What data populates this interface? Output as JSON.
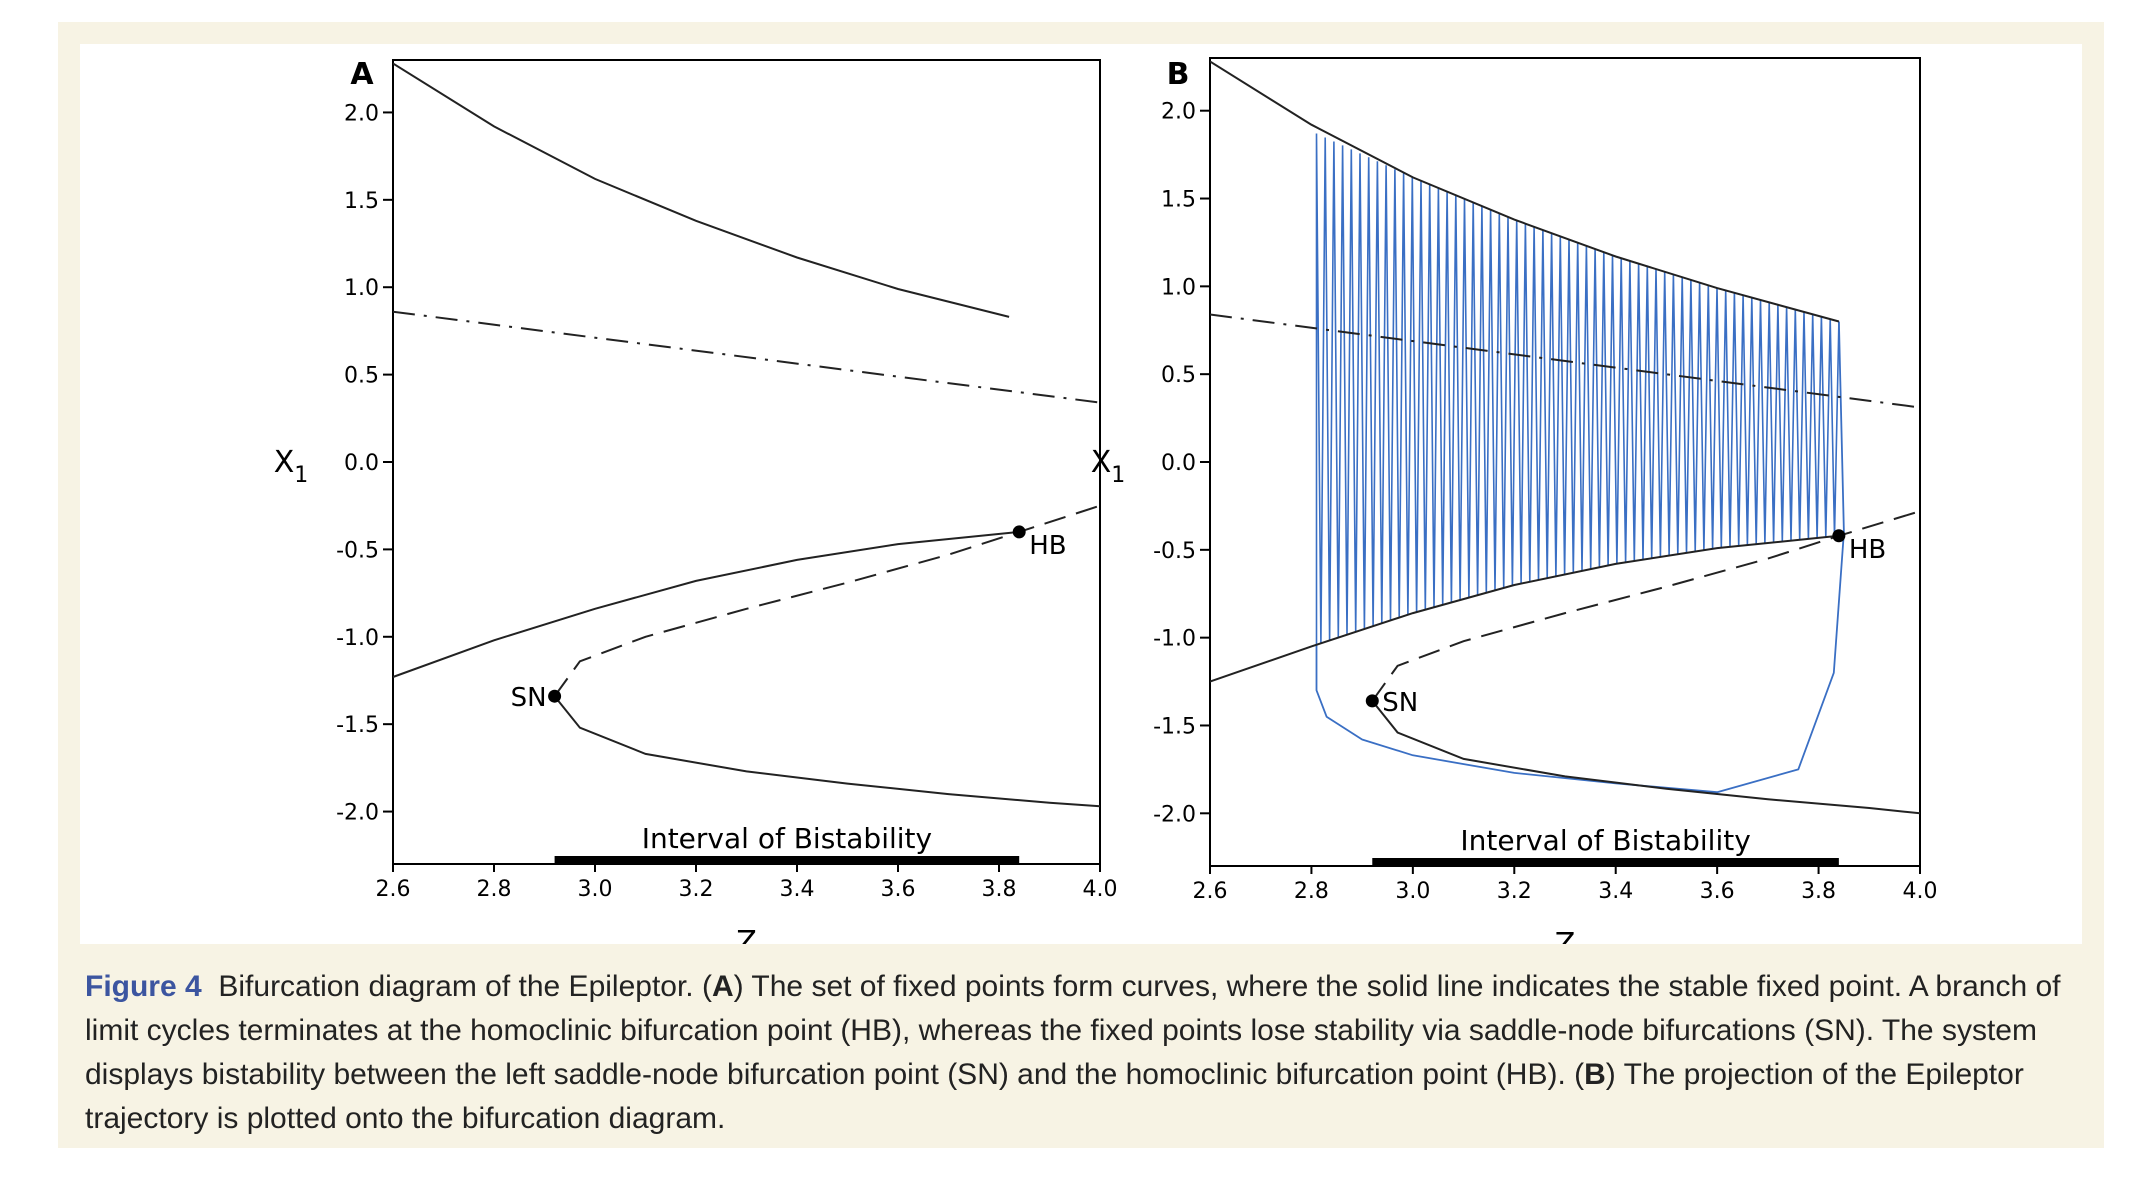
{
  "chart_data": [
    {
      "panel": "A",
      "type": "line",
      "xlabel": "Z",
      "ylabel": "X1",
      "xlim": [
        2.6,
        4.0
      ],
      "ylim": [
        -2.3,
        2.3
      ],
      "xticks": [
        "2.6",
        "2.8",
        "3.0",
        "3.2",
        "3.4",
        "3.6",
        "3.8",
        "4.0"
      ],
      "yticks": [
        "2.0",
        "1.5",
        "1.0",
        "0.5",
        "0.0",
        "-0.5",
        "-1.0",
        "-1.5",
        "-2.0"
      ],
      "series": [
        {
          "style": "solid",
          "x": [
            2.6,
            2.8,
            3.0,
            3.2,
            3.4,
            3.6,
            3.82
          ],
          "y": [
            2.28,
            1.92,
            1.62,
            1.38,
            1.17,
            0.99,
            0.83
          ]
        },
        {
          "style": "dash-dot",
          "x": [
            2.6,
            4.0
          ],
          "y": [
            0.86,
            0.34
          ]
        },
        {
          "style": "solid",
          "x": [
            2.6,
            2.8,
            3.0,
            3.2,
            3.4,
            3.6,
            3.84
          ],
          "y": [
            -1.23,
            -1.02,
            -0.84,
            -0.68,
            -0.56,
            -0.47,
            -0.4
          ]
        },
        {
          "style": "dashed",
          "x": [
            2.92,
            2.97,
            3.1,
            3.3,
            3.5,
            3.7,
            3.84,
            4.0
          ],
          "y": [
            -1.34,
            -1.14,
            -1.0,
            -0.84,
            -0.69,
            -0.53,
            -0.4,
            -0.25
          ]
        },
        {
          "style": "solid",
          "x": [
            2.92,
            2.97,
            3.1,
            3.3,
            3.5,
            3.7,
            3.9,
            4.0
          ],
          "y": [
            -1.34,
            -1.52,
            -1.67,
            -1.77,
            -1.84,
            -1.9,
            -1.95,
            -1.97
          ]
        }
      ],
      "points": [
        {
          "label": "SN",
          "x": 2.92,
          "y": -1.34
        },
        {
          "label": "HB",
          "x": 3.84,
          "y": -0.4
        }
      ],
      "interval": {
        "label": "Interval of Bistability",
        "x": [
          2.92,
          3.84
        ]
      }
    },
    {
      "panel": "B",
      "type": "line",
      "xlabel": "Z",
      "ylabel": "X1",
      "xlim": [
        2.6,
        4.0
      ],
      "ylim": [
        -2.3,
        2.3
      ],
      "xticks": [
        "2.6",
        "2.8",
        "3.0",
        "3.2",
        "3.4",
        "3.6",
        "3.8",
        "4.0"
      ],
      "yticks": [
        "2.0",
        "1.5",
        "1.0",
        "0.5",
        "0.0",
        "-0.5",
        "-1.0",
        "-1.5",
        "-2.0"
      ],
      "series": [
        {
          "style": "solid",
          "x": [
            2.6,
            2.8,
            3.0,
            3.2,
            3.4,
            3.6,
            3.84
          ],
          "y": [
            2.28,
            1.92,
            1.62,
            1.38,
            1.17,
            0.99,
            0.8
          ]
        },
        {
          "style": "dash-dot",
          "x": [
            2.6,
            4.0
          ],
          "y": [
            0.84,
            0.31
          ]
        },
        {
          "style": "solid",
          "x": [
            2.6,
            2.8,
            3.0,
            3.2,
            3.4,
            3.6,
            3.84
          ],
          "y": [
            -1.25,
            -1.05,
            -0.86,
            -0.7,
            -0.58,
            -0.49,
            -0.42
          ]
        },
        {
          "style": "dashed",
          "x": [
            2.92,
            2.97,
            3.1,
            3.3,
            3.5,
            3.7,
            3.84,
            4.0
          ],
          "y": [
            -1.36,
            -1.16,
            -1.02,
            -0.86,
            -0.71,
            -0.55,
            -0.42,
            -0.28
          ]
        },
        {
          "style": "solid",
          "x": [
            2.92,
            2.97,
            3.1,
            3.3,
            3.5,
            3.7,
            3.9,
            4.0
          ],
          "y": [
            -1.36,
            -1.54,
            -1.69,
            -1.79,
            -1.86,
            -1.92,
            -1.97,
            -2.0
          ]
        }
      ],
      "trajectory": {
        "color": "#3a6fc4",
        "x_start": 2.81,
        "x_end": 3.84,
        "oscillations": 60,
        "upper_envelope": {
          "x": [
            2.81,
            3.0,
            3.2,
            3.4,
            3.6,
            3.84
          ],
          "y": [
            1.87,
            1.62,
            1.38,
            1.17,
            0.99,
            0.8
          ]
        },
        "lower_envelope": {
          "x": [
            2.81,
            3.0,
            3.2,
            3.4,
            3.6,
            3.84
          ],
          "y": [
            -1.04,
            -0.86,
            -0.7,
            -0.58,
            -0.49,
            -0.42
          ]
        },
        "return_path": {
          "x": [
            3.84,
            3.85,
            3.83,
            3.76,
            3.6,
            3.4,
            3.2,
            3.0,
            2.9,
            2.83,
            2.81,
            2.81
          ],
          "y": [
            0.8,
            -0.4,
            -1.2,
            -1.75,
            -1.88,
            -1.83,
            -1.77,
            -1.67,
            -1.58,
            -1.45,
            -1.3,
            -1.04
          ]
        }
      },
      "points": [
        {
          "label": "SN",
          "x": 2.92,
          "y": -1.36
        },
        {
          "label": "HB",
          "x": 3.84,
          "y": -0.42
        }
      ],
      "interval": {
        "label": "Interval of Bistability",
        "x": [
          2.92,
          3.84
        ]
      }
    }
  ],
  "caption": {
    "figure_label": "Figure 4",
    "lead": "Bifurcation diagram of the Epileptor. (",
    "letter_a": "A",
    "part_a": ") The set of fixed points form curves, where the solid line indicates the stable fixed point. A branch of limit cycles terminates at the homoclinic bifurcation point (HB), whereas the fixed points lose stability via saddle-node bifurcations (SN). The system displays bistability between the left saddle-node bifurcation point (SN) and the homoclinic bifurcation point (HB). (",
    "letter_b": "B",
    "part_b": ") The projection of the Epileptor trajectory is plotted onto the bifurcation diagram."
  }
}
